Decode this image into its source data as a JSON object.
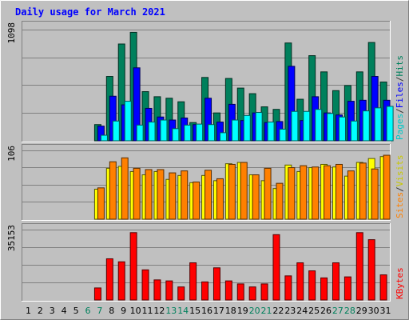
{
  "chart_data": {
    "type": "bar",
    "title": "Daily usage for March 2021",
    "categories": [
      "1",
      "2",
      "3",
      "4",
      "5",
      "6",
      "7",
      "8",
      "9",
      "10",
      "11",
      "12",
      "13",
      "14",
      "15",
      "16",
      "17",
      "18",
      "19",
      "20",
      "21",
      "22",
      "23",
      "24",
      "25",
      "26",
      "27",
      "28",
      "29",
      "30",
      "31"
    ],
    "weekend_days": [
      "6",
      "7",
      "13",
      "14",
      "20",
      "21",
      "27",
      "28"
    ],
    "panels": [
      {
        "id": "hits",
        "max_label": "1098",
        "ylim": [
          0,
          1098
        ],
        "series": [
          {
            "name": "Hits",
            "color": "#00805c",
            "values": [
              0,
              0,
              0,
              0,
              0,
              0,
              160,
              635,
              955,
              1070,
              485,
              435,
              420,
              385,
              180,
              625,
              275,
              615,
              520,
              465,
              335,
              310,
              965,
              410,
              840,
              680,
              495,
              545,
              680,
              970,
              580
            ]
          },
          {
            "name": "Files",
            "color": "#0000ff",
            "values": [
              0,
              0,
              0,
              0,
              0,
              0,
              145,
              440,
              355,
              720,
              320,
              235,
              205,
              225,
              160,
              420,
              185,
              360,
              200,
              275,
              180,
              190,
              735,
              200,
              435,
              275,
              255,
              390,
              400,
              635,
              400
            ]
          },
          {
            "name": "Pages",
            "color": "#00ffff",
            "values": [
              0,
              0,
              0,
              0,
              0,
              0,
              55,
              195,
              390,
              155,
              185,
              205,
              120,
              155,
              165,
              160,
              80,
              205,
              250,
              280,
              185,
              115,
              290,
              290,
              310,
              270,
              235,
              195,
              295,
              325,
              340
            ]
          }
        ],
        "side_labels": [
          {
            "text": "Pages",
            "color": "#00c8c8"
          },
          {
            "text": "/",
            "color": "#333333"
          },
          {
            "text": "Files",
            "color": "#0000ff"
          },
          {
            "text": "/",
            "color": "#333333"
          },
          {
            "text": "Hits",
            "color": "#00805c"
          }
        ]
      },
      {
        "id": "visits",
        "max_label": "106",
        "ylim": [
          0,
          106
        ],
        "series": [
          {
            "name": "Visits",
            "color": "#ffff00",
            "values": [
              0,
              0,
              0,
              0,
              0,
              0,
              46,
              78,
              81,
              73,
              68,
              73,
              61,
              67,
              56,
              67,
              59,
              85,
              87,
              68,
              59,
              47,
              83,
              73,
              79,
              84,
              80,
              66,
              87,
              93,
              96
            ]
          },
          {
            "name": "Sites",
            "color": "#ff8000",
            "values": [
              0,
              0,
              0,
              0,
              0,
              0,
              48,
              88,
              94,
              78,
              76,
              76,
              71,
              74,
              57,
              75,
              62,
              84,
              87,
              68,
              78,
              55,
              79,
              82,
              80,
              82,
              84,
              74,
              86,
              77,
              98
            ]
          }
        ],
        "side_labels": [
          {
            "text": "Sites",
            "color": "#ff8000"
          },
          {
            "text": "/",
            "color": "#333333"
          },
          {
            "text": "Visits",
            "color": "#c8c800"
          }
        ]
      },
      {
        "id": "kbytes",
        "max_label": "35153",
        "ylim": [
          0,
          35153
        ],
        "series": [
          {
            "name": "KBytes",
            "color": "#ff0000",
            "values": [
              0,
              0,
              0,
              0,
              0,
              0,
              6000,
              20500,
              19000,
              33500,
              15000,
              10000,
              9500,
              6500,
              18500,
              9000,
              16000,
              9500,
              8000,
              6500,
              8000,
              32500,
              12000,
              18500,
              14500,
              11000,
              18500,
              11500,
              33500,
              30000,
              12500
            ]
          }
        ],
        "side_labels": [
          {
            "text": "KBytes",
            "color": "#ff0000"
          }
        ]
      }
    ]
  }
}
